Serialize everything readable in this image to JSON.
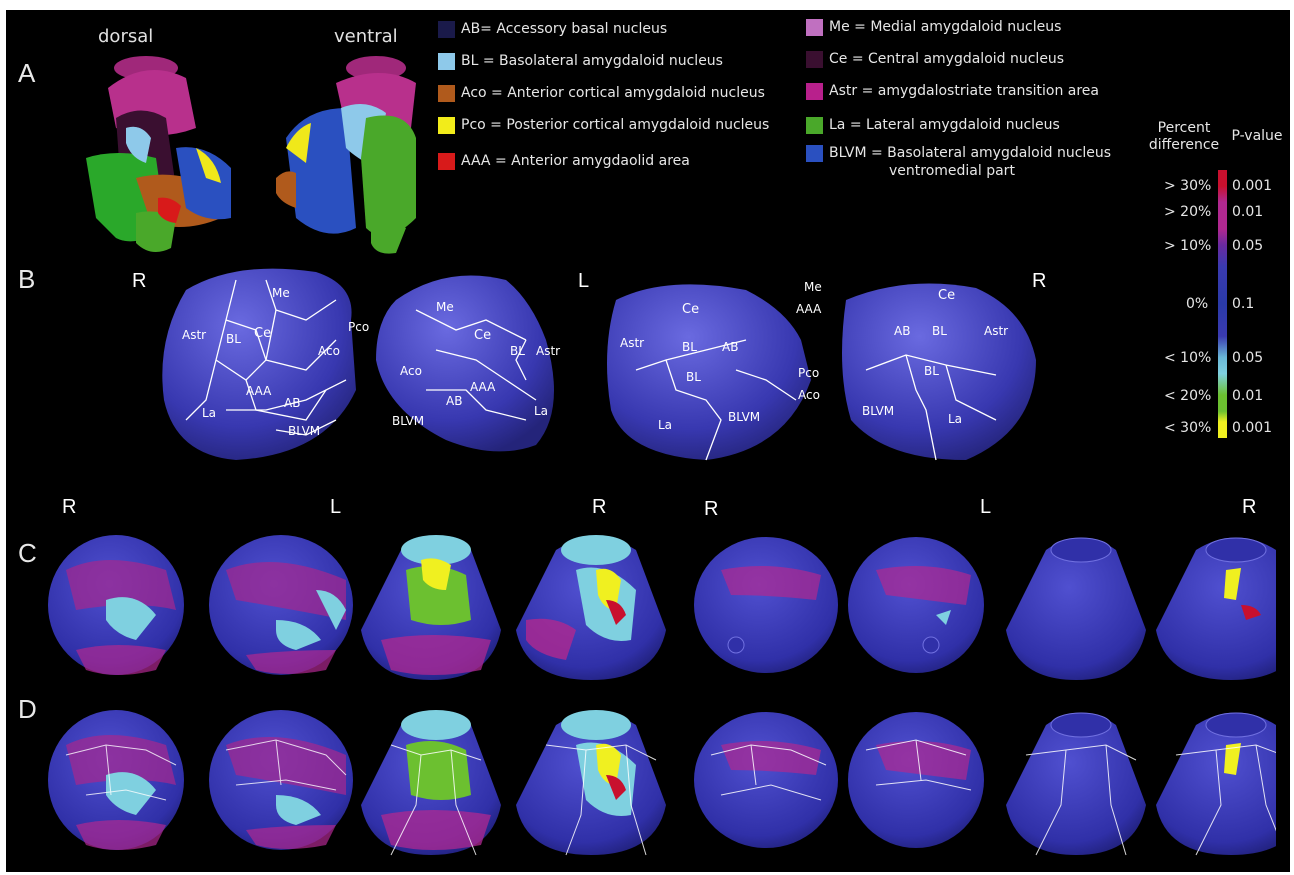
{
  "panels": {
    "a": "A",
    "b": "B",
    "c": "C",
    "d": "D"
  },
  "panel_a": {
    "view_dorsal": "dorsal",
    "view_ventral": "ventral"
  },
  "legend": {
    "left": [
      {
        "label": "AB= Accessory basal nucleus",
        "color": "#1a1a4a"
      },
      {
        "label": "BL = Basolateral amygdaloid nucleus",
        "color": "#8ec9ea"
      },
      {
        "label": "Aco = Anterior cortical amygdaloid nucleus",
        "color": "#b05a1c"
      },
      {
        "label": "Pco = Posterior cortical amygdaloid nucleus",
        "color": "#f2ec1a"
      },
      {
        "label": "AAA = Anterior amygdaolid area",
        "color": "#d81a1a"
      }
    ],
    "right": [
      {
        "label": "Me = Medial amygdaloid nucleus",
        "color": "#c070c0"
      },
      {
        "label": "Ce = Central amygdaloid nucleus",
        "color": "#3a0f30"
      },
      {
        "label": "Astr = amygdalostriate transition area",
        "color": "#b8208c"
      },
      {
        "label": "La = Lateral amygdaloid nucleus",
        "color": "#4aa82a"
      },
      {
        "label": "BLVM = Basolateral amygdaloid nucleus",
        "label2": "ventromedial part",
        "color": "#2a50c0"
      }
    ]
  },
  "side_labels": {
    "R": "R",
    "L": "L"
  },
  "region_labels": {
    "Me": "Me",
    "Ce": "Ce",
    "Astr": "Astr",
    "BL": "BL",
    "Pco": "Pco",
    "Aco": "Aco",
    "AAA": "AAA",
    "AB": "AB",
    "La": "La",
    "BLVM": "BLVM"
  },
  "scale": {
    "head_left_1": "Percent",
    "head_left_2": "difference",
    "head_right": "P-value",
    "ticks": [
      {
        "pct": "> 30%",
        "p": "0.001"
      },
      {
        "pct": "> 20%",
        "p": "0.01"
      },
      {
        "pct": "> 10%",
        "p": "0.05"
      },
      {
        "pct": "0%",
        "p": "0.1"
      },
      {
        "pct": "< 10%",
        "p": "0.05"
      },
      {
        "pct": "< 20%",
        "p": "0.01"
      },
      {
        "pct": "< 30%",
        "p": "0.001"
      }
    ],
    "colors": {
      "red": "#c8102e",
      "magenta": "#b02890",
      "purple": "#6a2aa0",
      "blue": "#2a3aa8",
      "cyan": "#7fd0e0",
      "green": "#6cc030",
      "yellow": "#f0f020"
    }
  },
  "colors": {
    "surface": "#3c3cb4",
    "surface_light": "#5a5ad0",
    "outline": "#ffffff"
  }
}
